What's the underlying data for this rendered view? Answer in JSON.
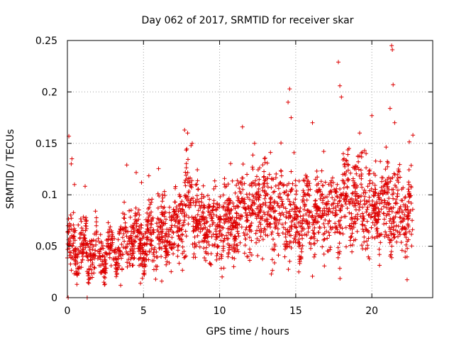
{
  "chart_data": {
    "type": "scatter",
    "title": "Day 062 of 2017, SRMTID for receiver skar",
    "xlabel": "GPS time / hours",
    "ylabel": "SRMTID / TECUs",
    "xlim": [
      0,
      24
    ],
    "ylim": [
      0,
      0.25
    ],
    "x_ticks": [
      0,
      5,
      10,
      15,
      20
    ],
    "x_tick_labels": [
      "0",
      "5",
      "10",
      "15",
      "20"
    ],
    "y_ticks": [
      0,
      0.05,
      0.1,
      0.15,
      0.2,
      0.25
    ],
    "y_tick_labels": [
      "0",
      "0.05",
      "0.1",
      "0.15",
      "0.2",
      "0.25"
    ],
    "grid": true,
    "marker": "+",
    "marker_color": "#dd0000",
    "series_name": "SRMTID",
    "highlight_points": [
      {
        "x": 0.1,
        "y": 0.157
      },
      {
        "x": 0.3,
        "y": 0.135
      },
      {
        "x": 0.25,
        "y": 0.13
      },
      {
        "x": 0.05,
        "y": 0.0
      },
      {
        "x": 1.3,
        "y": 0.0
      },
      {
        "x": 3.9,
        "y": 0.129
      },
      {
        "x": 7.7,
        "y": 0.163
      },
      {
        "x": 7.9,
        "y": 0.16
      },
      {
        "x": 11.5,
        "y": 0.166
      },
      {
        "x": 14.5,
        "y": 0.19
      },
      {
        "x": 14.6,
        "y": 0.203
      },
      {
        "x": 14.7,
        "y": 0.175
      },
      {
        "x": 16.1,
        "y": 0.17
      },
      {
        "x": 17.8,
        "y": 0.229
      },
      {
        "x": 17.9,
        "y": 0.206
      },
      {
        "x": 18.0,
        "y": 0.195
      },
      {
        "x": 19.2,
        "y": 0.16
      },
      {
        "x": 20.0,
        "y": 0.177
      },
      {
        "x": 21.3,
        "y": 0.245
      },
      {
        "x": 21.35,
        "y": 0.241
      },
      {
        "x": 21.4,
        "y": 0.207
      },
      {
        "x": 21.2,
        "y": 0.184
      },
      {
        "x": 21.5,
        "y": 0.17
      },
      {
        "x": 22.7,
        "y": 0.158
      },
      {
        "x": 8.2,
        "y": 0.15
      },
      {
        "x": 12.3,
        "y": 0.15
      },
      {
        "x": 2.4,
        "y": 0.015
      },
      {
        "x": 3.5,
        "y": 0.012
      },
      {
        "x": 4.8,
        "y": 0.014
      },
      {
        "x": 6.2,
        "y": 0.016
      },
      {
        "x": 13.4,
        "y": 0.023
      },
      {
        "x": 15.2,
        "y": 0.025
      }
    ],
    "trend": [
      {
        "x": 0.0,
        "y": 0.045
      },
      {
        "x": 1.0,
        "y": 0.048
      },
      {
        "x": 2.0,
        "y": 0.042
      },
      {
        "x": 3.0,
        "y": 0.045
      },
      {
        "x": 4.0,
        "y": 0.06
      },
      {
        "x": 5.0,
        "y": 0.055
      },
      {
        "x": 6.0,
        "y": 0.06
      },
      {
        "x": 7.0,
        "y": 0.065
      },
      {
        "x": 8.0,
        "y": 0.09
      },
      {
        "x": 9.0,
        "y": 0.07
      },
      {
        "x": 10.0,
        "y": 0.07
      },
      {
        "x": 11.0,
        "y": 0.078
      },
      {
        "x": 12.0,
        "y": 0.085
      },
      {
        "x": 13.0,
        "y": 0.085
      },
      {
        "x": 14.0,
        "y": 0.085
      },
      {
        "x": 15.0,
        "y": 0.075
      },
      {
        "x": 16.0,
        "y": 0.08
      },
      {
        "x": 17.0,
        "y": 0.08
      },
      {
        "x": 18.0,
        "y": 0.09
      },
      {
        "x": 19.0,
        "y": 0.1
      },
      {
        "x": 20.0,
        "y": 0.09
      },
      {
        "x": 21.0,
        "y": 0.09
      },
      {
        "x": 22.0,
        "y": 0.08
      },
      {
        "x": 22.7,
        "y": 0.075
      }
    ],
    "time_range_hours": [
      0,
      22.7
    ],
    "n_points": 2400,
    "seed": 62
  }
}
